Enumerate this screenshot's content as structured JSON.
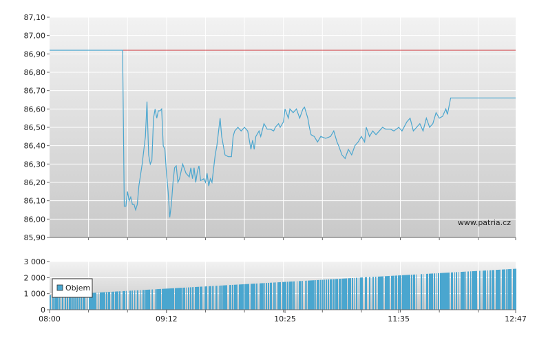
{
  "watermark": "www.patria.cz",
  "colors": {
    "line": "#4aa6cf",
    "reference": "#d0343a",
    "volume": "#4aa6cf",
    "grid": "#ffffff",
    "axis": "#666666"
  },
  "chart_data": [
    {
      "type": "line",
      "title": "",
      "xlabel": "",
      "ylabel": "",
      "x_range": [
        "08:00",
        "12:47"
      ],
      "ylim": [
        85.9,
        87.1
      ],
      "y_ticks": [
        "87,10",
        "87,00",
        "86,90",
        "86,80",
        "86,70",
        "86,60",
        "86,50",
        "86,40",
        "86,30",
        "86,20",
        "86,10",
        "86,00",
        "85,90"
      ],
      "grid": true,
      "reference_line": 86.92,
      "series": [
        {
          "name": "",
          "points": [
            [
              "08:00",
              86.92
            ],
            [
              "08:45",
              86.92
            ],
            [
              "08:46",
              86.07
            ],
            [
              "08:47",
              86.07
            ],
            [
              "08:48",
              86.15
            ],
            [
              "08:49",
              86.1
            ],
            [
              "08:50",
              86.12
            ],
            [
              "08:51",
              86.08
            ],
            [
              "08:52",
              86.08
            ],
            [
              "08:53",
              86.05
            ],
            [
              "08:54",
              86.08
            ],
            [
              "08:55",
              86.18
            ],
            [
              "08:57",
              86.3
            ],
            [
              "08:59",
              86.45
            ],
            [
              "09:00",
              86.64
            ],
            [
              "09:01",
              86.35
            ],
            [
              "09:02",
              86.3
            ],
            [
              "09:03",
              86.32
            ],
            [
              "09:04",
              86.55
            ],
            [
              "09:05",
              86.6
            ],
            [
              "09:06",
              86.55
            ],
            [
              "09:07",
              86.59
            ],
            [
              "09:08",
              86.59
            ],
            [
              "09:09",
              86.6
            ],
            [
              "09:10",
              86.4
            ],
            [
              "09:11",
              86.38
            ],
            [
              "09:12",
              86.25
            ],
            [
              "09:13",
              86.15
            ],
            [
              "09:14",
              86.01
            ],
            [
              "09:15",
              86.08
            ],
            [
              "09:16",
              86.2
            ],
            [
              "09:17",
              86.28
            ],
            [
              "09:18",
              86.29
            ],
            [
              "09:19",
              86.2
            ],
            [
              "09:20",
              86.22
            ],
            [
              "09:22",
              86.3
            ],
            [
              "09:24",
              86.25
            ],
            [
              "09:26",
              86.23
            ],
            [
              "09:27",
              86.28
            ],
            [
              "09:28",
              86.22
            ],
            [
              "09:29",
              86.28
            ],
            [
              "09:30",
              86.2
            ],
            [
              "09:31",
              86.26
            ],
            [
              "09:32",
              86.29
            ],
            [
              "09:33",
              86.21
            ],
            [
              "09:35",
              86.22
            ],
            [
              "09:36",
              86.2
            ],
            [
              "09:37",
              86.25
            ],
            [
              "09:38",
              86.18
            ],
            [
              "09:39",
              86.22
            ],
            [
              "09:40",
              86.2
            ],
            [
              "09:42",
              86.35
            ],
            [
              "09:43",
              86.4
            ],
            [
              "09:45",
              86.55
            ],
            [
              "09:46",
              86.45
            ],
            [
              "09:48",
              86.35
            ],
            [
              "09:50",
              86.34
            ],
            [
              "09:52",
              86.34
            ],
            [
              "09:53",
              86.45
            ],
            [
              "09:54",
              86.48
            ],
            [
              "09:56",
              86.5
            ],
            [
              "09:58",
              86.48
            ],
            [
              "10:00",
              86.5
            ],
            [
              "10:02",
              86.48
            ],
            [
              "10:04",
              86.38
            ],
            [
              "10:05",
              86.43
            ],
            [
              "10:06",
              86.38
            ],
            [
              "10:07",
              86.45
            ],
            [
              "10:09",
              86.48
            ],
            [
              "10:10",
              86.45
            ],
            [
              "10:12",
              86.52
            ],
            [
              "10:14",
              86.49
            ],
            [
              "10:16",
              86.49
            ],
            [
              "10:18",
              86.48
            ],
            [
              "10:19",
              86.5
            ],
            [
              "10:21",
              86.52
            ],
            [
              "10:22",
              86.5
            ],
            [
              "10:24",
              86.53
            ],
            [
              "10:25",
              86.6
            ],
            [
              "10:27",
              86.55
            ],
            [
              "10:28",
              86.6
            ],
            [
              "10:30",
              86.58
            ],
            [
              "10:32",
              86.6
            ],
            [
              "10:34",
              86.55
            ],
            [
              "10:36",
              86.6
            ],
            [
              "10:37",
              86.61
            ],
            [
              "10:39",
              86.55
            ],
            [
              "10:40",
              86.5
            ],
            [
              "10:41",
              86.46
            ],
            [
              "10:43",
              86.45
            ],
            [
              "10:45",
              86.42
            ],
            [
              "10:47",
              86.45
            ],
            [
              "10:50",
              86.44
            ],
            [
              "10:53",
              86.45
            ],
            [
              "10:55",
              86.48
            ],
            [
              "10:57",
              86.42
            ],
            [
              "10:58",
              86.4
            ],
            [
              "11:00",
              86.35
            ],
            [
              "11:02",
              86.33
            ],
            [
              "11:04",
              86.38
            ],
            [
              "11:06",
              86.35
            ],
            [
              "11:08",
              86.4
            ],
            [
              "11:10",
              86.42
            ],
            [
              "11:12",
              86.45
            ],
            [
              "11:14",
              86.42
            ],
            [
              "11:15",
              86.5
            ],
            [
              "11:17",
              86.45
            ],
            [
              "11:19",
              86.48
            ],
            [
              "11:21",
              86.46
            ],
            [
              "11:23",
              86.48
            ],
            [
              "11:25",
              86.5
            ],
            [
              "11:27",
              86.49
            ],
            [
              "11:30",
              86.49
            ],
            [
              "11:32",
              86.48
            ],
            [
              "11:35",
              86.5
            ],
            [
              "11:37",
              86.48
            ],
            [
              "11:40",
              86.53
            ],
            [
              "11:42",
              86.55
            ],
            [
              "11:44",
              86.48
            ],
            [
              "11:46",
              86.5
            ],
            [
              "11:48",
              86.52
            ],
            [
              "11:50",
              86.48
            ],
            [
              "11:52",
              86.55
            ],
            [
              "11:54",
              86.5
            ],
            [
              "11:56",
              86.52
            ],
            [
              "11:58",
              86.58
            ],
            [
              "12:00",
              86.55
            ],
            [
              "12:02",
              86.56
            ],
            [
              "12:04",
              86.6
            ],
            [
              "12:05",
              86.57
            ],
            [
              "12:07",
              86.66
            ],
            [
              "12:20",
              86.66
            ],
            [
              "12:47",
              86.66
            ]
          ]
        }
      ]
    },
    {
      "type": "bar",
      "title": "",
      "xlabel": "",
      "ylabel": "",
      "x_range": [
        "08:00",
        "12:47"
      ],
      "ylim": [
        0,
        3000
      ],
      "y_ticks": [
        "3 000",
        "2 000",
        "1 000",
        "0"
      ],
      "x_ticks": [
        "08:00",
        "09:12",
        "10:25",
        "11:35",
        "12:47"
      ],
      "grid": true,
      "legend": {
        "position": "top-left",
        "entries": [
          "Objem"
        ]
      },
      "series": [
        {
          "name": "Objem",
          "x_range": [
            "08:00",
            "12:47"
          ],
          "start_value": 900,
          "end_value": 2550
        }
      ]
    }
  ]
}
